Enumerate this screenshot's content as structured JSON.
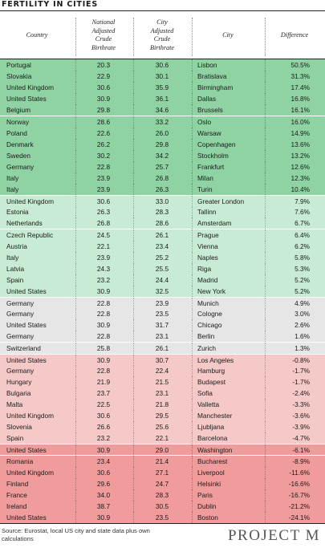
{
  "title": "FERTILITY IN CITIES",
  "headers": {
    "country": "Country",
    "national": "National\nAdjusted\nCrude\nBirthrate",
    "city_birthrate": "City\nAdjusted\nCrude\nBirthrate",
    "city": "City",
    "difference": "Difference"
  },
  "source": "Source: Eurostat, local US city and state data plus own calculations",
  "brand": "PROJECT M",
  "colors": {
    "positive_strong": "#8fd3a3",
    "positive_light": "#c8ecd3",
    "neutral": "#e6e6e6",
    "negative_light": "#f6c9c9",
    "negative_strong": "#f09c9c"
  },
  "chart_data": {
    "type": "table",
    "title": "FERTILITY IN CITIES",
    "columns": [
      "Country",
      "National Adjusted Crude Birthrate",
      "City Adjusted Crude Birthrate",
      "City",
      "Difference"
    ],
    "rows": [
      {
        "country": "Portugal",
        "national": "20.3",
        "city_rate": "30.6",
        "city": "Lisbon",
        "difference": "50.5%",
        "band": "positive_strong"
      },
      {
        "country": "Slovakia",
        "national": "22.9",
        "city_rate": "30.1",
        "city": "Bratislava",
        "difference": "31.3%",
        "band": "positive_strong"
      },
      {
        "country": "United Kingdom",
        "national": "30.6",
        "city_rate": "35.9",
        "city": "Birmingham",
        "difference": "17.4%",
        "band": "positive_strong"
      },
      {
        "country": "United States",
        "national": "30.9",
        "city_rate": "36.1",
        "city": "Dallas",
        "difference": "16.8%",
        "band": "positive_strong"
      },
      {
        "country": "Belgium",
        "national": "29.8",
        "city_rate": "34.6",
        "city": "Brussels",
        "difference": "16.1%",
        "band": "positive_strong"
      },
      {
        "country": "Norway",
        "national": "28.6",
        "city_rate": "33.2",
        "city": "Oslo",
        "difference": "16.0%",
        "band": "positive_strong"
      },
      {
        "country": "Poland",
        "national": "22.6",
        "city_rate": "26.0",
        "city": "Warsaw",
        "difference": "14.9%",
        "band": "positive_strong"
      },
      {
        "country": "Denmark",
        "national": "26.2",
        "city_rate": "29.8",
        "city": "Copenhagen",
        "difference": "13.6%",
        "band": "positive_strong"
      },
      {
        "country": "Sweden",
        "national": "30.2",
        "city_rate": "34.2",
        "city": "Stockholm",
        "difference": "13.2%",
        "band": "positive_strong"
      },
      {
        "country": "Germany",
        "national": "22.8",
        "city_rate": "25.7",
        "city": "Frankfurt",
        "difference": "12.6%",
        "band": "positive_strong"
      },
      {
        "country": "Italy",
        "national": "23.9",
        "city_rate": "26.8",
        "city": "Milan",
        "difference": "12.3%",
        "band": "positive_strong"
      },
      {
        "country": "Italy",
        "national": "23.9",
        "city_rate": "26.3",
        "city": "Turin",
        "difference": "10.4%",
        "band": "positive_strong"
      },
      {
        "country": "United Kingdom",
        "national": "30.6",
        "city_rate": "33.0",
        "city": "Greater London",
        "difference": "7.9%",
        "band": "positive_light"
      },
      {
        "country": "Estonia",
        "national": "26.3",
        "city_rate": "28.3",
        "city": "Tallinn",
        "difference": "7.6%",
        "band": "positive_light"
      },
      {
        "country": "Netherlands",
        "national": "26.8",
        "city_rate": "28.6",
        "city": "Amsterdam",
        "difference": "6.7%",
        "band": "positive_light"
      },
      {
        "country": "Czech Republic",
        "national": "24.5",
        "city_rate": "26.1",
        "city": "Prague",
        "difference": "6.4%",
        "band": "positive_light"
      },
      {
        "country": "Austria",
        "national": "22.1",
        "city_rate": "23.4",
        "city": "Vienna",
        "difference": "6.2%",
        "band": "positive_light"
      },
      {
        "country": "Italy",
        "national": "23.9",
        "city_rate": "25.2",
        "city": "Naples",
        "difference": "5.8%",
        "band": "positive_light"
      },
      {
        "country": "Latvia",
        "national": "24.3",
        "city_rate": "25.5",
        "city": "Riga",
        "difference": "5.3%",
        "band": "positive_light"
      },
      {
        "country": "Spain",
        "national": "23.2",
        "city_rate": "24.4",
        "city": "Madrid",
        "difference": "5.2%",
        "band": "positive_light"
      },
      {
        "country": "United States",
        "national": "30.9",
        "city_rate": "32.5",
        "city": "New York",
        "difference": "5.2%",
        "band": "positive_light"
      },
      {
        "country": "Germany",
        "national": "22.8",
        "city_rate": "23.9",
        "city": "Munich",
        "difference": "4.9%",
        "band": "neutral"
      },
      {
        "country": "Germany",
        "national": "22.8",
        "city_rate": "23.5",
        "city": "Cologne",
        "difference": "3.0%",
        "band": "neutral"
      },
      {
        "country": "United States",
        "national": "30.9",
        "city_rate": "31.7",
        "city": "Chicago",
        "difference": "2.6%",
        "band": "neutral"
      },
      {
        "country": "Germany",
        "national": "22.8",
        "city_rate": "23.1",
        "city": "Berlin",
        "difference": "1.6%",
        "band": "neutral"
      },
      {
        "country": "Switzerland",
        "national": "25.8",
        "city_rate": "26.1",
        "city": "Zurich",
        "difference": "1.3%",
        "band": "neutral"
      },
      {
        "country": "United States",
        "national": "30.9",
        "city_rate": "30.7",
        "city": "Los Angeles",
        "difference": "-0.8%",
        "band": "negative_light"
      },
      {
        "country": "Germany",
        "national": "22.8",
        "city_rate": "22.4",
        "city": "Hamburg",
        "difference": "-1.7%",
        "band": "negative_light"
      },
      {
        "country": "Hungary",
        "national": "21.9",
        "city_rate": "21.5",
        "city": "Budapest",
        "difference": "-1.7%",
        "band": "negative_light"
      },
      {
        "country": "Bulgaria",
        "national": "23.7",
        "city_rate": "23.1",
        "city": "Sofia",
        "difference": "-2.4%",
        "band": "negative_light"
      },
      {
        "country": "Malta",
        "national": "22.5",
        "city_rate": "21.8",
        "city": "Valletta",
        "difference": "-3.3%",
        "band": "negative_light"
      },
      {
        "country": "United Kingdom",
        "national": "30.6",
        "city_rate": "29.5",
        "city": "Manchester",
        "difference": "-3.6%",
        "band": "negative_light"
      },
      {
        "country": "Slovenia",
        "national": "26.6",
        "city_rate": "25.6",
        "city": "Ljubljana",
        "difference": "-3.9%",
        "band": "negative_light"
      },
      {
        "country": "Spain",
        "national": "23.2",
        "city_rate": "22.1",
        "city": "Barcelona",
        "difference": "-4.7%",
        "band": "negative_light"
      },
      {
        "country": "United States",
        "national": "30.9",
        "city_rate": "29.0",
        "city": "Washington",
        "difference": "-6.1%",
        "band": "negative_strong"
      },
      {
        "country": "Romania",
        "national": "23.4",
        "city_rate": "21.4",
        "city": "Bucharest",
        "difference": "-8.9%",
        "band": "negative_strong"
      },
      {
        "country": "United Kingdom",
        "national": "30.6",
        "city_rate": "27.1",
        "city": "Liverpool",
        "difference": "-11.6%",
        "band": "negative_strong"
      },
      {
        "country": "Finland",
        "national": "29.6",
        "city_rate": "24.7",
        "city": "Helsinki",
        "difference": "-16.6%",
        "band": "negative_strong"
      },
      {
        "country": "France",
        "national": "34.0",
        "city_rate": "28.3",
        "city": "Paris",
        "difference": "-16.7%",
        "band": "negative_strong"
      },
      {
        "country": "Ireland",
        "national": "38.7",
        "city_rate": "30.5",
        "city": "Dublin",
        "difference": "-21.2%",
        "band": "negative_strong"
      },
      {
        "country": "United States",
        "national": "30.9",
        "city_rate": "23.5",
        "city": "Boston",
        "difference": "-24.1%",
        "band": "negative_strong"
      }
    ]
  }
}
